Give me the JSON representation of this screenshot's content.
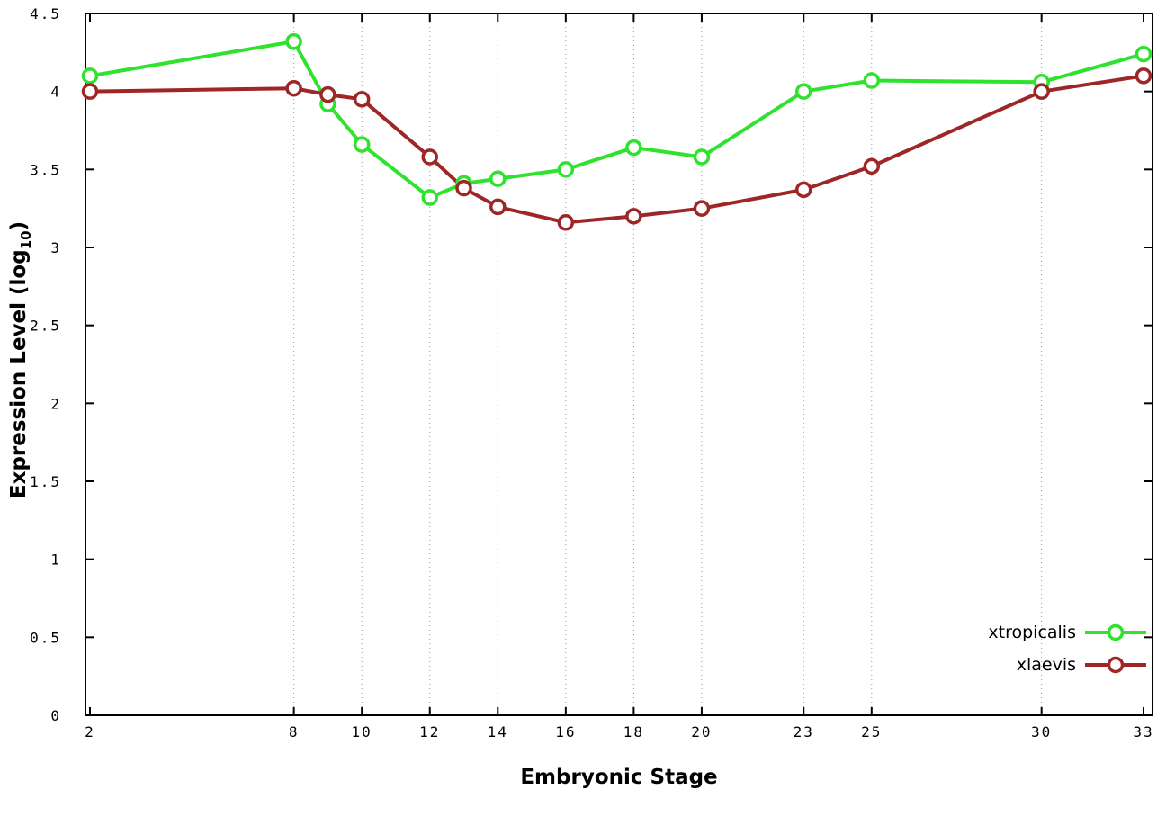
{
  "chart_data": {
    "type": "line",
    "title": "",
    "xlabel": "Embryonic Stage",
    "ylabel": "Expression Level (log10)",
    "ylabel_parts": [
      "Expression Level (log",
      "10",
      ")"
    ],
    "xlim": [
      2,
      33
    ],
    "ylim": [
      0,
      4.5
    ],
    "x_ticks": [
      2,
      8,
      10,
      12,
      14,
      16,
      18,
      20,
      23,
      25,
      30,
      33
    ],
    "y_ticks": [
      0,
      0.5,
      1,
      1.5,
      2,
      2.5,
      3,
      3.5,
      4,
      4.5
    ],
    "y_tick_labels": [
      "0",
      "0.5",
      "1",
      "1.5",
      "2",
      "2.5",
      "3",
      "3.5",
      "4",
      "4.5"
    ],
    "grid": "vertical-dotted",
    "legend_position": "bottom-right",
    "background_color": "#ffffff",
    "border_color": "#000000",
    "grid_color": "#9a9a9a",
    "marker_style": "open-circle",
    "series": [
      {
        "name": "xtropicalis",
        "color": "#2ee22e",
        "x": [
          2,
          8,
          9,
          10,
          12,
          13,
          14,
          16,
          18,
          20,
          23,
          25,
          30,
          33
        ],
        "values": [
          4.1,
          4.32,
          3.92,
          3.66,
          3.32,
          3.41,
          3.44,
          3.5,
          3.64,
          3.58,
          4.0,
          4.07,
          4.06,
          4.24
        ]
      },
      {
        "name": "xlaevis",
        "color": "#9e2626",
        "x": [
          2,
          8,
          9,
          10,
          12,
          13,
          14,
          16,
          18,
          20,
          23,
          25,
          30,
          33
        ],
        "values": [
          4.0,
          4.02,
          3.98,
          3.95,
          3.58,
          3.38,
          3.26,
          3.16,
          3.2,
          3.25,
          3.37,
          3.52,
          4.0,
          4.1
        ]
      }
    ]
  }
}
